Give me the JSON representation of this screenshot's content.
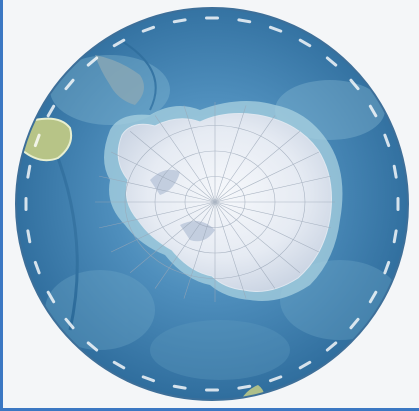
{
  "map": {
    "projection": "south-polar-stereographic",
    "colors": {
      "frame_border": "#3b78c3",
      "page_background": "#f4f6f8",
      "deep_ocean": "#2f6f9f",
      "shallow_ocean": "#5c9cc4",
      "shelf_ocean": "#8fc2d6",
      "ice": "#eef2f7",
      "ice_shadow": "#c9d3e2",
      "rim": "#3d6f99",
      "land": "#b9c58a",
      "tick_text": "#ffffff"
    },
    "icons": {
      "graticule": "graticule-lines-icon",
      "continent": "antarctica-icon"
    },
    "rim_tick_count": 36,
    "rim_label_count": 36
  }
}
